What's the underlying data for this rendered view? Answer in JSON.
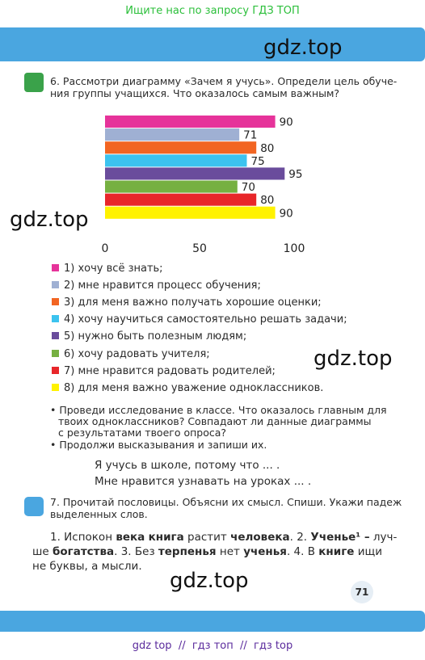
{
  "header": {
    "banner": "Ищите нас по запросу ГДЗ ТОП"
  },
  "watermarks": [
    "gdz.top",
    "gdz.top",
    "gdz.top",
    "gdz.top"
  ],
  "task6": {
    "lines": [
      "6. Рассмотри диаграмму «Зачем я учусь». Определи цель обуче-",
      "ния группы учащихся. Что оказалось самым важным?"
    ]
  },
  "chart_data": {
    "type": "bar",
    "orientation": "horizontal",
    "categories": [
      "1) хочу всё знать;",
      "2) мне нравится процесс обучения;",
      "3) для меня важно получать хорошие оценки;",
      "4) хочу научиться самостоятельно решать задачи;",
      "5) нужно быть полезным людям;",
      "6) хочу радовать учителя;",
      "7) мне нравится радовать родителей;",
      "8) для меня важно уважение одноклассников."
    ],
    "values": [
      90,
      71,
      80,
      75,
      95,
      70,
      80,
      90
    ],
    "colors": [
      "#e6339a",
      "#9fb0d3",
      "#f26522",
      "#3cc3ef",
      "#6a4c9c",
      "#76b041",
      "#e8262a",
      "#fff200"
    ],
    "xlim": [
      0,
      100
    ],
    "xticks": [
      0,
      50,
      100
    ]
  },
  "bullets": [
    "• Проведи исследование в классе. Что оказалось главным для",
    "твоих одноклассников? Совпадают ли данные диаграммы",
    "с результатами твоего опроса?",
    "• Продолжи высказывания и запиши их."
  ],
  "prompts": [
    "Я учусь в школе, потому что ... .",
    "Мне нравится узнавать на уроках ... ."
  ],
  "task7": {
    "lines": [
      "7. Прочитай пословицы. Объясни их смысл. Спиши. Укажи падеж",
      "выделенных слов."
    ],
    "proverbs": [
      [
        {
          "text": "1. Испокон ",
          "bold": false
        },
        {
          "text": "века",
          "bold": true
        },
        {
          "text": " ",
          "bold": false
        },
        {
          "text": "книга",
          "bold": true
        },
        {
          "text": " растит ",
          "bold": false
        },
        {
          "text": "человека",
          "bold": true
        },
        {
          "text": ". 2. ",
          "bold": false
        },
        {
          "text": "Ученье¹ –",
          "bold": true
        },
        {
          "text": " луч-",
          "bold": false
        }
      ],
      [
        {
          "text": "ше ",
          "bold": false
        },
        {
          "text": "богатства",
          "bold": true
        },
        {
          "text": ". 3. Без ",
          "bold": false
        },
        {
          "text": "терпенья",
          "bold": true
        },
        {
          "text": " нет ",
          "bold": false
        },
        {
          "text": "ученья",
          "bold": true
        },
        {
          "text": ". 4. В ",
          "bold": false
        },
        {
          "text": "книге",
          "bold": true
        },
        {
          "text": " ищи",
          "bold": false
        }
      ],
      [
        {
          "text": "не буквы, а мысли.",
          "bold": false
        }
      ]
    ]
  },
  "page_number": "71",
  "footer": "gdz top  //  гдз топ  //  гдз top"
}
